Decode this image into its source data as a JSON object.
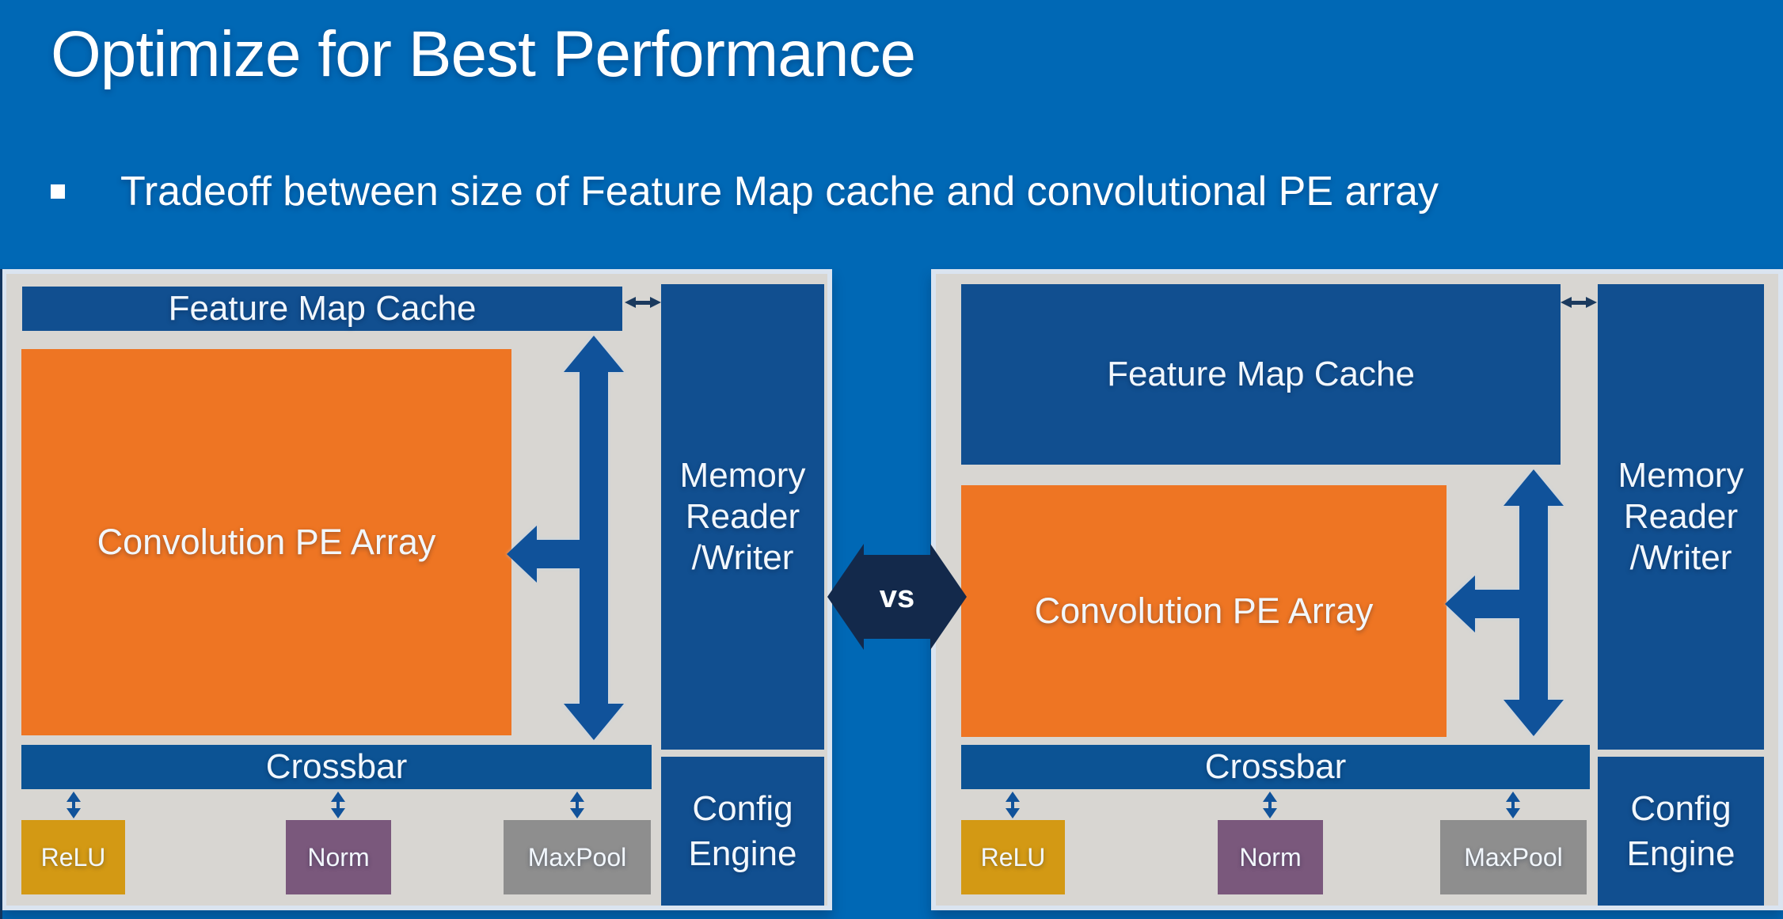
{
  "slide": {
    "title": "Optimize for Best Performance",
    "bullet": "Tradeoff between size of Feature Map cache and convolutional PE array"
  },
  "labels": {
    "feature_map_cache": "Feature Map Cache",
    "convolution_pe_array": "Convolution PE Array",
    "memory_reader_writer": "Memory\nReader\n/Writer",
    "crossbar": "Crossbar",
    "relu": "ReLU",
    "norm": "Norm",
    "maxpool": "MaxPool",
    "config_engine": "Config\nEngine",
    "vs": "vs"
  },
  "colors": {
    "background": "#0068B5",
    "panel": "#D8D6D2",
    "panel_border": "#DAE4F0",
    "box_blue": "#114F90",
    "crossbar_blue": "#0C5394",
    "orange": "#EE7523",
    "relu_gold": "#D39914",
    "norm_purple": "#7A587C",
    "maxpool_gray": "#8E8E8E",
    "arrow_blue": "#10529A",
    "connector_navy": "#1B3A5E",
    "vs_navy": "#13294B",
    "text": "#FFFFFF"
  }
}
